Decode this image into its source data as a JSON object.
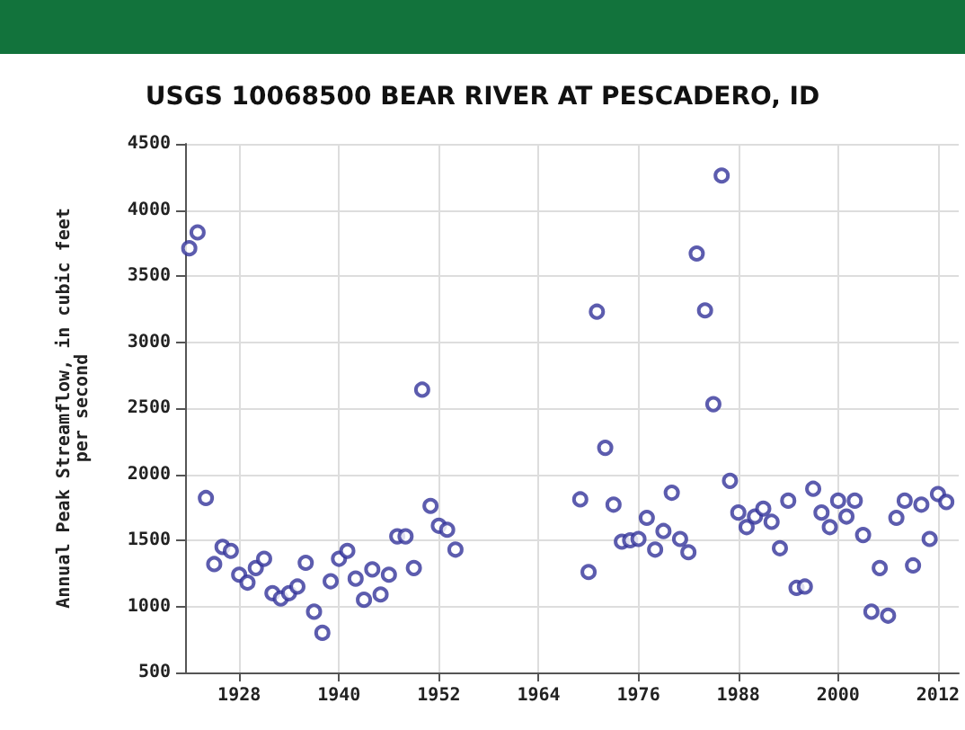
{
  "chart_data": {
    "type": "scatter",
    "title": "USGS 10068500 BEAR RIVER AT PESCADERO, ID",
    "ylabel": "Annual Peak Streamflow, in cubic feet\nper second",
    "x": [
      1922,
      1923,
      1924,
      1925,
      1926,
      1927,
      1928,
      1929,
      1930,
      1931,
      1932,
      1933,
      1934,
      1935,
      1936,
      1937,
      1938,
      1939,
      1940,
      1941,
      1942,
      1943,
      1944,
      1945,
      1946,
      1947,
      1948,
      1949,
      1950,
      1951,
      1952,
      1953,
      1954,
      1969,
      1970,
      1971,
      1972,
      1973,
      1974,
      1975,
      1976,
      1977,
      1978,
      1979,
      1980,
      1981,
      1982,
      1983,
      1984,
      1985,
      1986,
      1987,
      1988,
      1989,
      1990,
      1991,
      1992,
      1993,
      1994,
      1995,
      1996,
      1997,
      1998,
      1999,
      2000,
      2001,
      2002,
      2003,
      2004,
      2005,
      2006,
      2007,
      2008,
      2009,
      2010,
      2011,
      2012,
      2013
    ],
    "values": [
      3710,
      3830,
      1820,
      1320,
      1450,
      1420,
      1240,
      1180,
      1290,
      1360,
      1100,
      1060,
      1100,
      1150,
      1330,
      960,
      800,
      1190,
      1360,
      1420,
      1210,
      1050,
      1280,
      1090,
      1240,
      1530,
      1530,
      1290,
      2640,
      1760,
      1610,
      1580,
      1430,
      1810,
      1260,
      3230,
      2200,
      1770,
      1490,
      1500,
      1510,
      1670,
      1430,
      1570,
      1860,
      1510,
      1410,
      3670,
      3240,
      2530,
      4260,
      1950,
      1710,
      1600,
      1680,
      1740,
      1640,
      1440,
      1800,
      1140,
      1150,
      1890,
      1710,
      1600,
      1800,
      1680,
      1800,
      1540,
      960,
      1290,
      930,
      1670,
      1800,
      1310,
      1770,
      1510,
      1850,
      1790
    ],
    "color": "#33339a",
    "marker": "circle",
    "grid": true,
    "xlim": [
      1921.5,
      2014.5
    ],
    "xticks": [
      1928,
      1940,
      1952,
      1964,
      1976,
      1988,
      2000,
      2012
    ],
    "ylim": [
      500,
      4500
    ],
    "yticks": [
      500,
      1000,
      1500,
      2000,
      2500,
      3000,
      3500,
      4000,
      4500
    ]
  }
}
